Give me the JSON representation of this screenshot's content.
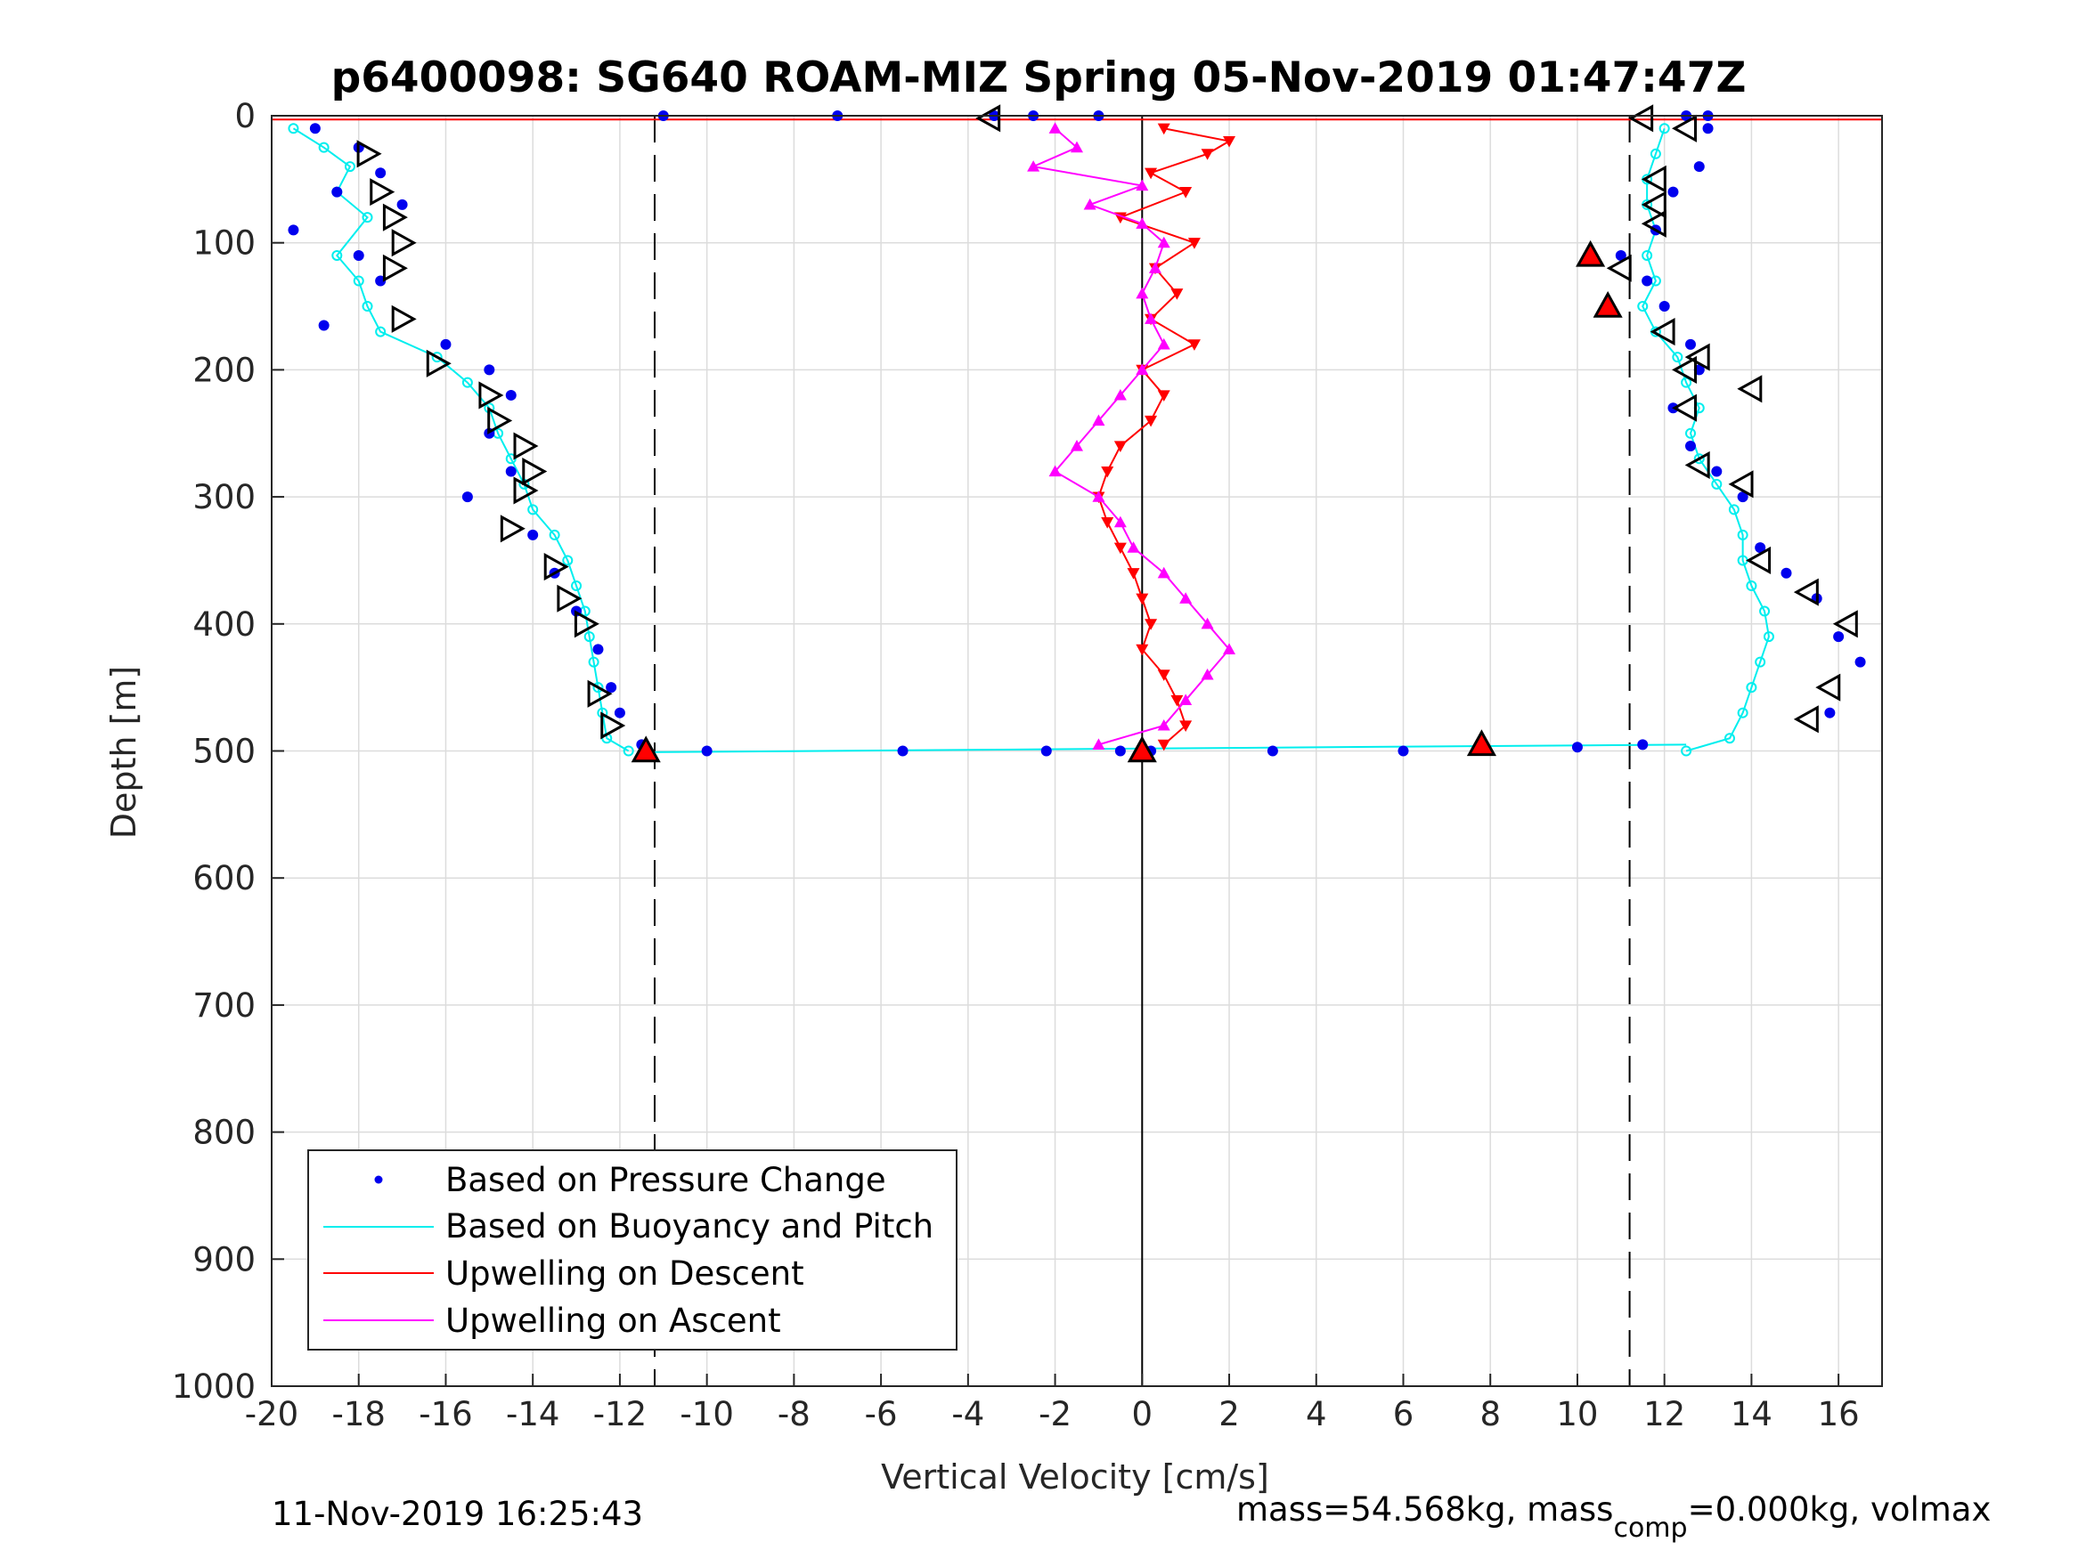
{
  "chart_data": {
    "type": "scatter",
    "title": "p6400098: SG640 ROAM-MIZ Spring 05-Nov-2019 01:47:47Z",
    "xlabel": "Vertical Velocity [cm/s]",
    "ylabel": "Depth [m]",
    "xlim": [
      -20,
      17
    ],
    "ylim": [
      0,
      1000
    ],
    "y_reversed": true,
    "grid": true,
    "x_ticks": [
      -20,
      -18,
      -16,
      -14,
      -12,
      -10,
      -8,
      -6,
      -4,
      -2,
      0,
      2,
      4,
      6,
      8,
      10,
      12,
      14,
      16
    ],
    "y_ticks": [
      0,
      100,
      200,
      300,
      400,
      500,
      600,
      700,
      800,
      900,
      1000
    ],
    "legend_position": "bottom-left",
    "reference_lines": [
      {
        "x": -11.2,
        "style": "dashed",
        "color": "#000000"
      },
      {
        "x": 11.2,
        "style": "dashed",
        "color": "#000000"
      },
      {
        "x": 0,
        "style": "solid",
        "color": "#000000"
      }
    ],
    "series": [
      {
        "name": "Based on Pressure Change",
        "color": "#0000ee",
        "marker": "dot",
        "descent": [
          [
            -19,
            10
          ],
          [
            -18,
            25
          ],
          [
            -17.5,
            45
          ],
          [
            -18.5,
            60
          ],
          [
            -17,
            70
          ],
          [
            -19.5,
            90
          ],
          [
            -18,
            110
          ],
          [
            -17.5,
            130
          ],
          [
            -18.8,
            165
          ],
          [
            -16,
            180
          ],
          [
            -15,
            200
          ],
          [
            -14.5,
            220
          ],
          [
            -15,
            250
          ],
          [
            -14.5,
            280
          ],
          [
            -15.5,
            300
          ],
          [
            -14,
            330
          ],
          [
            -13.5,
            360
          ],
          [
            -13,
            390
          ],
          [
            -12.5,
            420
          ],
          [
            -12.2,
            450
          ],
          [
            -12,
            470
          ],
          [
            -11.5,
            495
          ]
        ],
        "ascent": [
          [
            16.5,
            430
          ],
          [
            16,
            410
          ],
          [
            15.8,
            470
          ],
          [
            15.5,
            380
          ],
          [
            14.8,
            360
          ],
          [
            14.2,
            340
          ],
          [
            13.8,
            300
          ],
          [
            13.2,
            280
          ],
          [
            12.6,
            260
          ],
          [
            12.2,
            230
          ],
          [
            12.8,
            200
          ],
          [
            12.6,
            180
          ],
          [
            12,
            150
          ],
          [
            11.6,
            130
          ],
          [
            11,
            110
          ],
          [
            11.8,
            90
          ],
          [
            12.2,
            60
          ],
          [
            12.8,
            40
          ],
          [
            13,
            10
          ]
        ],
        "surface": [
          [
            -11,
            0
          ],
          [
            -7,
            0
          ],
          [
            -3.4,
            0
          ],
          [
            -2.5,
            0
          ],
          [
            -1,
            0
          ],
          [
            12.5,
            0
          ],
          [
            13,
            0
          ]
        ],
        "bottom": [
          [
            -10,
            500
          ],
          [
            -5.5,
            500
          ],
          [
            -2.2,
            500
          ],
          [
            -0.5,
            500
          ],
          [
            0.2,
            500
          ],
          [
            3,
            500
          ],
          [
            6,
            500
          ],
          [
            10,
            497
          ],
          [
            11.5,
            495
          ]
        ]
      },
      {
        "name": "Based on Buoyancy and Pitch",
        "color": "#00eeee",
        "marker": "circle-line",
        "descent": [
          [
            -19.5,
            10
          ],
          [
            -18.8,
            25
          ],
          [
            -18.2,
            40
          ],
          [
            -18.5,
            60
          ],
          [
            -17.8,
            80
          ],
          [
            -18.5,
            110
          ],
          [
            -18.0,
            130
          ],
          [
            -17.8,
            150
          ],
          [
            -17.5,
            170
          ],
          [
            -16.2,
            190
          ],
          [
            -15.5,
            210
          ],
          [
            -15.0,
            230
          ],
          [
            -14.8,
            250
          ],
          [
            -14.5,
            270
          ],
          [
            -14.2,
            290
          ],
          [
            -14.0,
            310
          ],
          [
            -13.5,
            330
          ],
          [
            -13.2,
            350
          ],
          [
            -13.0,
            370
          ],
          [
            -12.8,
            390
          ],
          [
            -12.7,
            410
          ],
          [
            -12.6,
            430
          ],
          [
            -12.5,
            450
          ],
          [
            -12.4,
            470
          ],
          [
            -12.3,
            490
          ],
          [
            -11.8,
            500
          ]
        ],
        "ascent": [
          [
            12.5,
            500
          ],
          [
            13.5,
            490
          ],
          [
            13.8,
            470
          ],
          [
            14.0,
            450
          ],
          [
            14.2,
            430
          ],
          [
            14.4,
            410
          ],
          [
            14.3,
            390
          ],
          [
            14.0,
            370
          ],
          [
            13.8,
            350
          ],
          [
            13.8,
            330
          ],
          [
            13.6,
            310
          ],
          [
            13.2,
            290
          ],
          [
            12.8,
            270
          ],
          [
            12.6,
            250
          ],
          [
            12.8,
            230
          ],
          [
            12.5,
            210
          ],
          [
            12.3,
            190
          ],
          [
            11.8,
            170
          ],
          [
            11.5,
            150
          ],
          [
            11.8,
            130
          ],
          [
            11.6,
            110
          ],
          [
            11.8,
            90
          ],
          [
            11.6,
            70
          ],
          [
            11.6,
            50
          ],
          [
            11.8,
            30
          ],
          [
            12.0,
            10
          ]
        ]
      },
      {
        "name": "Upwelling on Descent",
        "color": "#ff0000",
        "marker": "triangle-down",
        "points": [
          [
            0.5,
            10
          ],
          [
            2.0,
            20
          ],
          [
            1.5,
            30
          ],
          [
            0.2,
            45
          ],
          [
            1.0,
            60
          ],
          [
            -0.5,
            80
          ],
          [
            1.2,
            100
          ],
          [
            0.3,
            120
          ],
          [
            0.8,
            140
          ],
          [
            0.2,
            160
          ],
          [
            1.2,
            180
          ],
          [
            0.0,
            200
          ],
          [
            0.5,
            220
          ],
          [
            0.2,
            240
          ],
          [
            -0.5,
            260
          ],
          [
            -0.8,
            280
          ],
          [
            -1.0,
            300
          ],
          [
            -0.8,
            320
          ],
          [
            -0.5,
            340
          ],
          [
            -0.2,
            360
          ],
          [
            0.0,
            380
          ],
          [
            0.2,
            400
          ],
          [
            0.0,
            420
          ],
          [
            0.5,
            440
          ],
          [
            0.8,
            460
          ],
          [
            1.0,
            480
          ],
          [
            0.5,
            495
          ]
        ]
      },
      {
        "name": "Upwelling on Ascent",
        "color": "#ff00ff",
        "marker": "triangle-up",
        "points": [
          [
            -2.0,
            10
          ],
          [
            -1.5,
            25
          ],
          [
            -2.5,
            40
          ],
          [
            0.0,
            55
          ],
          [
            -1.2,
            70
          ],
          [
            0.0,
            85
          ],
          [
            0.5,
            100
          ],
          [
            0.3,
            120
          ],
          [
            0.0,
            140
          ],
          [
            0.2,
            160
          ],
          [
            0.5,
            180
          ],
          [
            0.0,
            200
          ],
          [
            -0.5,
            220
          ],
          [
            -1.0,
            240
          ],
          [
            -1.5,
            260
          ],
          [
            -2.0,
            280
          ],
          [
            -1.0,
            300
          ],
          [
            -0.5,
            320
          ],
          [
            -0.2,
            340
          ],
          [
            0.5,
            360
          ],
          [
            1.0,
            380
          ],
          [
            1.5,
            400
          ],
          [
            2.0,
            420
          ],
          [
            1.5,
            440
          ],
          [
            1.0,
            460
          ],
          [
            0.5,
            480
          ],
          [
            -1.0,
            495
          ]
        ]
      }
    ],
    "marker_annotations": {
      "open_triangles_descent": [
        [
          -17.8,
          30
        ],
        [
          -17.5,
          60
        ],
        [
          -17.2,
          80
        ],
        [
          -17.0,
          100
        ],
        [
          -17.2,
          120
        ],
        [
          -17.0,
          160
        ],
        [
          -16.2,
          195
        ],
        [
          -15.0,
          220
        ],
        [
          -14.8,
          240
        ],
        [
          -14.2,
          260
        ],
        [
          -14.0,
          280
        ],
        [
          -14.2,
          295
        ],
        [
          -14.5,
          325
        ],
        [
          -13.5,
          355
        ],
        [
          -13.2,
          380
        ],
        [
          -12.8,
          400
        ],
        [
          -12.5,
          455
        ],
        [
          -12.2,
          480
        ]
      ],
      "open_triangles_ascent": [
        [
          -3.5,
          2
        ],
        [
          11.5,
          2
        ],
        [
          12.5,
          10
        ],
        [
          11.8,
          50
        ],
        [
          11.8,
          70
        ],
        [
          11.8,
          85
        ],
        [
          11.0,
          120
        ],
        [
          12.0,
          170
        ],
        [
          12.8,
          190
        ],
        [
          12.5,
          200
        ],
        [
          14.0,
          215
        ],
        [
          12.5,
          230
        ],
        [
          12.8,
          275
        ],
        [
          13.8,
          290
        ],
        [
          14.2,
          350
        ],
        [
          15.3,
          375
        ],
        [
          16.2,
          400
        ],
        [
          15.8,
          450
        ],
        [
          15.3,
          475
        ]
      ],
      "filled_red_triangles": [
        [
          -11.4,
          500
        ],
        [
          7.8,
          495
        ],
        [
          10.3,
          110
        ],
        [
          10.7,
          150
        ],
        [
          0.0,
          500
        ]
      ]
    }
  },
  "legend": {
    "items": [
      {
        "label": "Based on Pressure Change",
        "color": "#0000ee",
        "kind": "dot"
      },
      {
        "label": "Based on Buoyancy and Pitch",
        "color": "#00eeee",
        "kind": "line"
      },
      {
        "label": "Upwelling on Descent",
        "color": "#ff0000",
        "kind": "line"
      },
      {
        "label": "Upwelling on Ascent",
        "color": "#ff00ff",
        "kind": "line"
      }
    ]
  },
  "footer": {
    "timestamp": "11-Nov-2019 16:25:43",
    "mass_text_prefix": "mass=54.568kg, mass",
    "mass_subscript": "comp",
    "mass_text_suffix": "=0.000kg, volmax"
  }
}
